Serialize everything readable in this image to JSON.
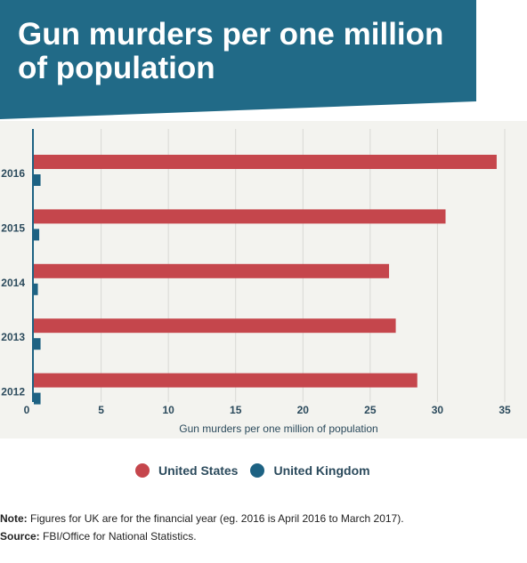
{
  "title": "Gun murders per one million of population",
  "colors": {
    "banner": "#216a87",
    "plot_bg": "#f3f3ef",
    "us": "#c5464c",
    "uk": "#1d6283"
  },
  "legend": {
    "us_label": "United States",
    "uk_label": "United Kingdom"
  },
  "footnotes": {
    "note_label": "Note:",
    "note_text": " Figures for UK are for the financial year (eg. 2016 is April 2016 to March 2017).",
    "source_label": "Source:",
    "source_text": " FBI/Office for National Statistics."
  },
  "chart_data": {
    "type": "bar",
    "orientation": "horizontal",
    "categories": [
      "2016",
      "2015",
      "2014",
      "2013",
      "2012"
    ],
    "series": [
      {
        "name": "United States",
        "values": [
          34.4,
          30.6,
          26.4,
          26.9,
          28.5
        ]
      },
      {
        "name": "United Kingdom",
        "values": [
          0.5,
          0.4,
          0.3,
          0.5,
          0.5
        ]
      }
    ],
    "xlabel": "Gun murders per one million of population",
    "xlim": [
      0,
      35
    ],
    "xticks": [
      0,
      5,
      10,
      15,
      20,
      25,
      30,
      35
    ],
    "grid": true,
    "legend_position": "bottom"
  }
}
